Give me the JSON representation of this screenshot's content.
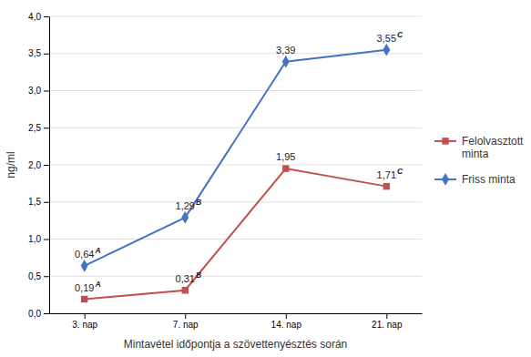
{
  "chart_data": {
    "type": "line",
    "x_label": "Mintavétel időpontja a szövettenyésztés során",
    "y_label": "ng/ml",
    "categories": [
      "3. nap",
      "7. nap",
      "14. nap",
      "21. nap"
    ],
    "series": [
      {
        "name": "Felolvasztott\nminta",
        "color": "#C0504D",
        "marker": "square",
        "values": [
          0.19,
          0.31,
          1.95,
          1.71
        ],
        "value_labels": [
          "0,19",
          "0,31",
          "1,95",
          "1,71"
        ],
        "superscripts": [
          "A",
          "B",
          null,
          "C"
        ]
      },
      {
        "name": "Friss minta",
        "color": "#4472C4",
        "marker": "diamond",
        "values": [
          0.64,
          1.29,
          3.39,
          3.55
        ],
        "value_labels": [
          "0,64",
          "1,29",
          "3,39",
          "3,55"
        ],
        "superscripts": [
          "A",
          "B",
          null,
          "C"
        ]
      }
    ],
    "ylim": [
      0.0,
      4.0
    ],
    "yticks": [
      {
        "value": 0.0,
        "label": "0,0"
      },
      {
        "value": 0.5,
        "label": "0,5"
      },
      {
        "value": 1.0,
        "label": "1,0"
      },
      {
        "value": 1.5,
        "label": "1,5"
      },
      {
        "value": 2.0,
        "label": "2,0"
      },
      {
        "value": 2.5,
        "label": "2,5"
      },
      {
        "value": 3.0,
        "label": "3,0"
      },
      {
        "value": 3.5,
        "label": "3,5"
      },
      {
        "value": 4.0,
        "label": "4,0"
      }
    ],
    "grid": true,
    "data_labels": true,
    "legend": "right"
  }
}
